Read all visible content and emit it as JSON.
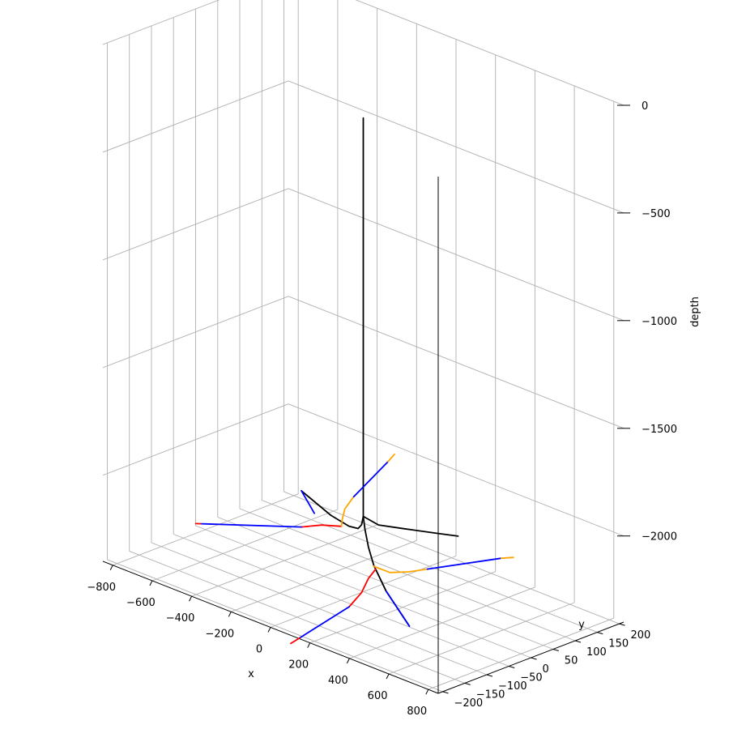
{
  "chart_data": {
    "type": "line3d",
    "title": "",
    "xlabel": "x",
    "ylabel": "y",
    "zlabel": "depth",
    "xlim": [
      -850,
      850
    ],
    "ylim": [
      -210,
      210
    ],
    "zlim": [
      -2400,
      0
    ],
    "x_ticks": [
      -800,
      -600,
      -400,
      -200,
      0,
      200,
      400,
      600,
      800
    ],
    "x_tick_labels": [
      "−800",
      "−600",
      "−400",
      "−200",
      "0",
      "200",
      "400",
      "600",
      "800"
    ],
    "y_ticks": [
      -200,
      -150,
      -100,
      -50,
      0,
      50,
      100,
      150,
      200
    ],
    "y_tick_labels": [
      "−200",
      "−150",
      "−100",
      "−50",
      "0",
      "50",
      "100",
      "150",
      "200"
    ],
    "z_ticks": [
      0,
      -500,
      -1000,
      -1500,
      -2000
    ],
    "z_tick_labels": [
      "0",
      "−500",
      "−1000",
      "−1500",
      "−2000"
    ],
    "grid": true,
    "colors": {
      "main": "#000000",
      "lateral": "#0000ff",
      "build": "#ff0000",
      "turn": "#ffa500"
    },
    "series": [
      {
        "color": "#000000",
        "points": [
          [
            0,
            0,
            -200
          ],
          [
            0,
            0,
            -2050
          ],
          [
            20,
            -5,
            -2100
          ],
          [
            60,
            -15,
            -2160
          ],
          [
            120,
            -30,
            -2210
          ],
          [
            250,
            -60,
            -2260
          ],
          [
            480,
            -110,
            -2300
          ]
        ]
      },
      {
        "color": "#000000",
        "points": [
          [
            0,
            0,
            -2050
          ],
          [
            -20,
            5,
            -2100
          ],
          [
            -60,
            15,
            -2140
          ],
          [
            -140,
            30,
            -2170
          ],
          [
            -300,
            60,
            -2200
          ],
          [
            -560,
            110,
            -2220
          ]
        ]
      },
      {
        "color": "#000000",
        "points": [
          [
            0,
            0,
            -2050
          ],
          [
            10,
            30,
            -2110
          ],
          [
            30,
            80,
            -2160
          ],
          [
            70,
            135,
            -2210
          ],
          [
            100,
            170,
            -2240
          ]
        ]
      },
      {
        "color": "#ff0000",
        "points": [
          [
            130,
            -30,
            -2225
          ],
          [
            150,
            -55,
            -2240
          ],
          [
            170,
            -80,
            -2280
          ],
          [
            175,
            -110,
            -2320
          ]
        ]
      },
      {
        "color": "#0000ff",
        "points": [
          [
            175,
            -110,
            -2320
          ],
          [
            170,
            -220,
            -2380
          ]
        ]
      },
      {
        "color": "#ff0000",
        "points": [
          [
            170,
            -220,
            -2380
          ],
          [
            170,
            -240,
            -2390
          ]
        ]
      },
      {
        "color": "#0000ff",
        "points": [
          [
            250,
            -60,
            -2260
          ],
          [
            480,
            -110,
            -2300
          ]
        ]
      },
      {
        "color": "#ffa500",
        "points": [
          [
            120,
            -30,
            -2215
          ],
          [
            180,
            -20,
            -2230
          ],
          [
            230,
            0,
            -2225
          ],
          [
            280,
            20,
            -2210
          ]
        ]
      },
      {
        "color": "#0000ff",
        "points": [
          [
            280,
            20,
            -2210
          ],
          [
            520,
            80,
            -2120
          ]
        ]
      },
      {
        "color": "#ffa500",
        "points": [
          [
            520,
            80,
            -2120
          ],
          [
            560,
            90,
            -2110
          ]
        ]
      },
      {
        "color": "#ff0000",
        "points": [
          [
            -200,
            40,
            -2200
          ],
          [
            -300,
            40,
            -2230
          ],
          [
            -380,
            30,
            -2260
          ]
        ]
      },
      {
        "color": "#0000ff",
        "points": [
          [
            -380,
            30,
            -2260
          ],
          [
            -780,
            -20,
            -2350
          ]
        ]
      },
      {
        "color": "#ff0000",
        "points": [
          [
            -780,
            -20,
            -2350
          ],
          [
            -800,
            -22,
            -2355
          ]
        ]
      },
      {
        "color": "#0000ff",
        "points": [
          [
            -360,
            50,
            -2205
          ],
          [
            -560,
            110,
            -2220
          ]
        ]
      },
      {
        "color": "#ffa500",
        "points": [
          [
            -200,
            40,
            -2200
          ],
          [
            -230,
            55,
            -2190
          ],
          [
            -250,
            70,
            -2160
          ],
          [
            -250,
            90,
            -2120
          ]
        ]
      },
      {
        "color": "#0000ff",
        "points": [
          [
            -250,
            90,
            -2120
          ],
          [
            -210,
            150,
            -1990
          ]
        ]
      },
      {
        "color": "#ffa500",
        "points": [
          [
            -210,
            150,
            -1990
          ],
          [
            -200,
            160,
            -1960
          ]
        ]
      }
    ]
  }
}
